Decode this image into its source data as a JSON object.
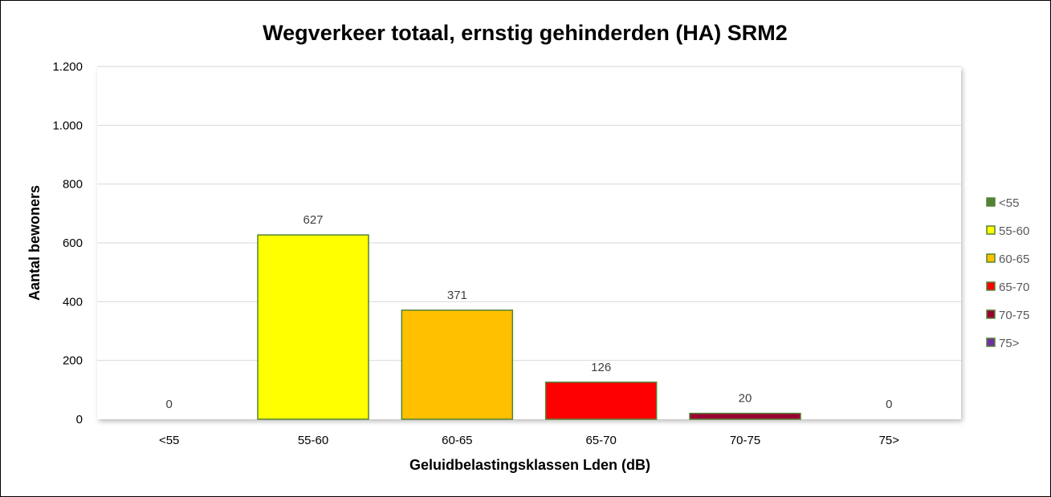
{
  "chart_data": {
    "type": "bar",
    "title": "Wegverkeer totaal, ernstig gehinderden (HA) SRM2",
    "xlabel": "Geluidbelastingsklassen Lden (dB)",
    "ylabel": "Aantal bewoners",
    "categories": [
      "<55",
      "55-60",
      "60-65",
      "65-70",
      "70-75",
      "75>"
    ],
    "values": [
      0,
      627,
      371,
      126,
      20,
      0
    ],
    "data_labels": [
      "0",
      "627",
      "371",
      "126",
      "20",
      "0"
    ],
    "colors": [
      "#548235",
      "#FFFF00",
      "#FFC000",
      "#FF0000",
      "#990033",
      "#7030A0"
    ],
    "bar_border": "#548235",
    "ylim": [
      0,
      1200
    ],
    "yticks": [
      0,
      200,
      400,
      600,
      800,
      1000,
      1200
    ],
    "ytick_labels": [
      "0",
      "200",
      "400",
      "600",
      "800",
      "1.000",
      "1.200"
    ],
    "grid": true,
    "legend": {
      "position": "right",
      "entries": [
        "<55",
        "55-60",
        "60-65",
        "65-70",
        "70-75",
        "75>"
      ]
    }
  }
}
